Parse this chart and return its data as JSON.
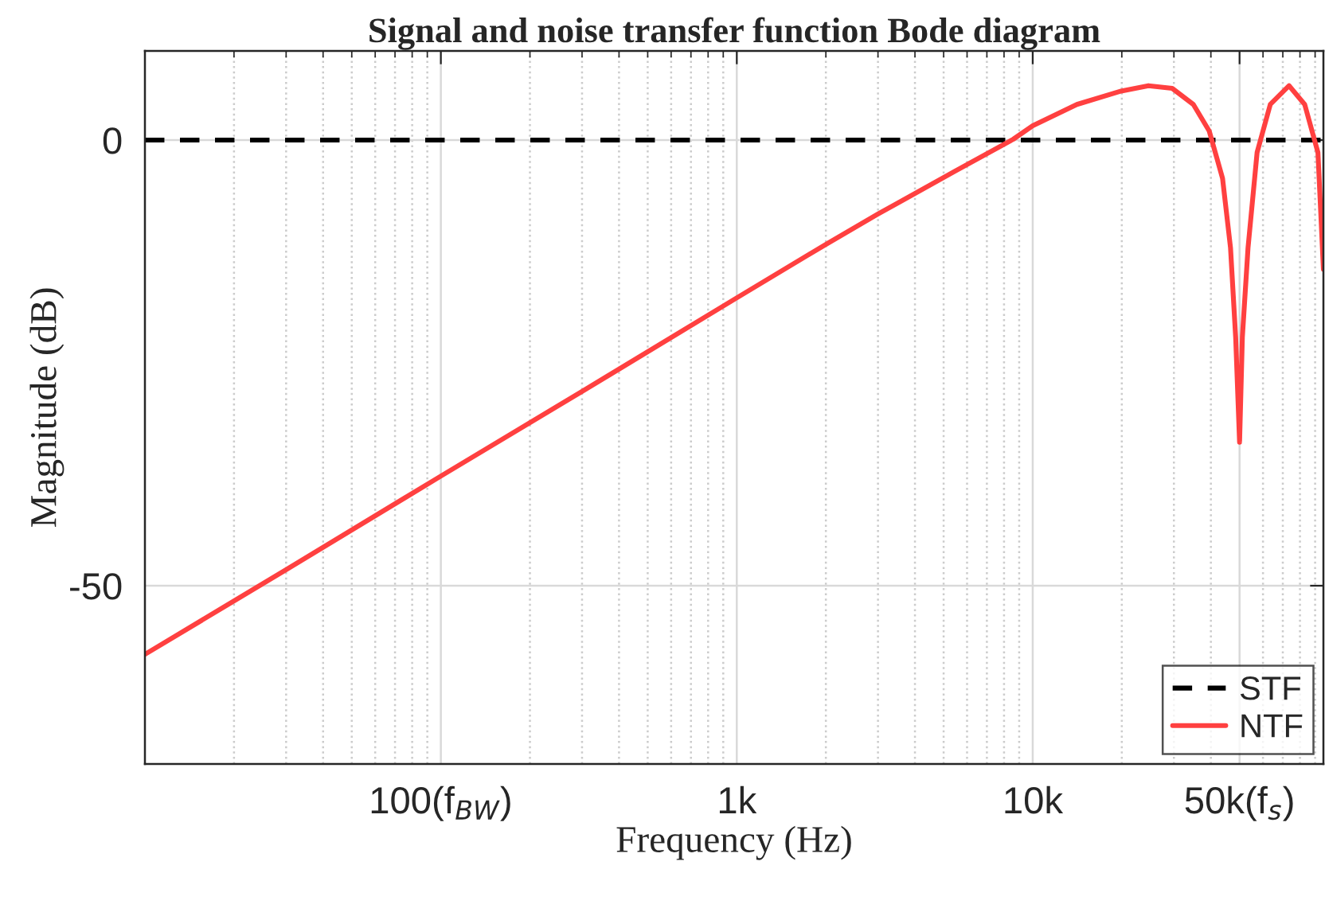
{
  "chart_data": {
    "type": "line",
    "title": "Signal and noise transfer function Bode diagram",
    "xlabel": "Frequency (Hz)",
    "ylabel": "Magnitude (dB)",
    "log": "x",
    "grid": true,
    "legend": "bottom right",
    "xlim": [
      10,
      96000
    ],
    "ylim": [
      -70,
      10
    ],
    "xticks": [
      {
        "value": 100,
        "label": "100(f$_{BW}$)"
      },
      {
        "value": 1000,
        "label": "1k"
      },
      {
        "value": 10000,
        "label": "10k"
      },
      {
        "value": 50000,
        "label": "50k(f$_{s}$)"
      }
    ],
    "yticks": [
      -50,
      0
    ],
    "series": [
      {
        "name": "STF",
        "color": "#000000",
        "line_style": "dashed",
        "x": [
          10,
          96000
        ],
        "values": [
          0,
          0
        ]
      },
      {
        "name": "NTF",
        "color": "#ff4040",
        "line_style": "solid",
        "x": [
          10,
          30,
          100,
          300,
          1000,
          2000,
          3000,
          5460,
          8600,
          10000,
          14100,
          19900,
          24600,
          29600,
          34900,
          39500,
          43800,
          46600,
          48500,
          50000,
          51100,
          53400,
          57300,
          63500,
          73500,
          83000,
          92000,
          96000
        ],
        "values": [
          -57.7,
          -48.2,
          -37.7,
          -28.2,
          -17.7,
          -11.7,
          -8.3,
          -3.5,
          0.1,
          1.6,
          4.0,
          5.5,
          6.1,
          5.8,
          4.0,
          1.0,
          -4.3,
          -12.1,
          -22.1,
          -33.9,
          -22.1,
          -12.1,
          -1.4,
          4.0,
          6.1,
          4.0,
          -1.4,
          -14.5
        ]
      }
    ]
  }
}
